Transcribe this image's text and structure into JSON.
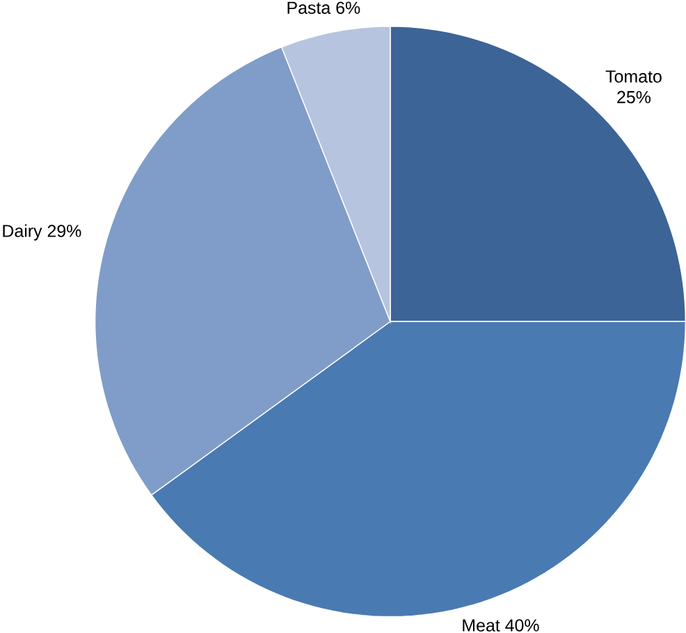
{
  "chart_data": {
    "type": "pie",
    "categories": [
      "Tomato",
      "Meat",
      "Dairy",
      "Pasta"
    ],
    "values": [
      25,
      40,
      29,
      6
    ],
    "colors": [
      "#3c6496",
      "#4a7ab2",
      "#7f9dc8",
      "#b6c4df"
    ],
    "value_labels": [
      "25%",
      "40%",
      "29%",
      "6%"
    ]
  }
}
